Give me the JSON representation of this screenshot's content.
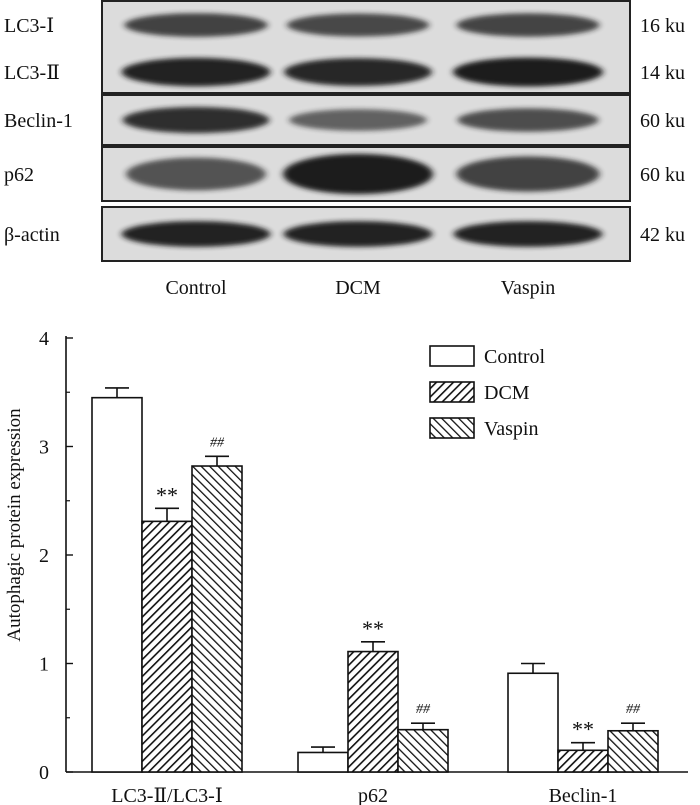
{
  "blot": {
    "rows": [
      {
        "label": "LC3-Ⅰ",
        "ku": "16 ku",
        "intensity": [
          0.7,
          0.65,
          0.68
        ],
        "thick": 0.45
      },
      {
        "label": "LC3-Ⅱ",
        "ku": "14 ku",
        "intensity": [
          0.95,
          0.9,
          1.0
        ],
        "thick": 0.55
      },
      {
        "label": "Beclin-1",
        "ku": "60 ku",
        "intensity": [
          0.85,
          0.45,
          0.6
        ],
        "thick": 0.45
      },
      {
        "label": "p62",
        "ku": "60 ku",
        "intensity": [
          0.55,
          1.0,
          0.7
        ],
        "thick": 0.6
      },
      {
        "label": "β-actin",
        "ku": "42 ku",
        "intensity": [
          0.95,
          0.95,
          0.95
        ],
        "thick": 0.42
      }
    ],
    "lanes": [
      "Control",
      "DCM",
      "Vaspin"
    ]
  },
  "chart_data": {
    "type": "bar",
    "ylabel": "Autophagic protein expression",
    "ylim": [
      0,
      4
    ],
    "yticks": [
      "0",
      "1",
      "2",
      "3",
      "4"
    ],
    "categories": [
      "LC3-Ⅱ/LC3-Ⅰ",
      "p62",
      "Beclin-1"
    ],
    "series": [
      {
        "name": "Control",
        "values": [
          3.45,
          0.18,
          0.91
        ],
        "errors": [
          0.09,
          0.05,
          0.09
        ],
        "pattern": "none",
        "marks": [
          "",
          "",
          ""
        ]
      },
      {
        "name": "DCM",
        "values": [
          2.31,
          1.11,
          0.2
        ],
        "errors": [
          0.12,
          0.09,
          0.07
        ],
        "pattern": "hatch-right",
        "marks": [
          "**",
          "**",
          "**"
        ]
      },
      {
        "name": "Vaspin",
        "values": [
          2.82,
          0.39,
          0.38
        ],
        "errors": [
          0.09,
          0.06,
          0.07
        ],
        "pattern": "hatch-left",
        "marks": [
          "##",
          "##",
          "##"
        ]
      }
    ],
    "legend_position": "top-right"
  }
}
